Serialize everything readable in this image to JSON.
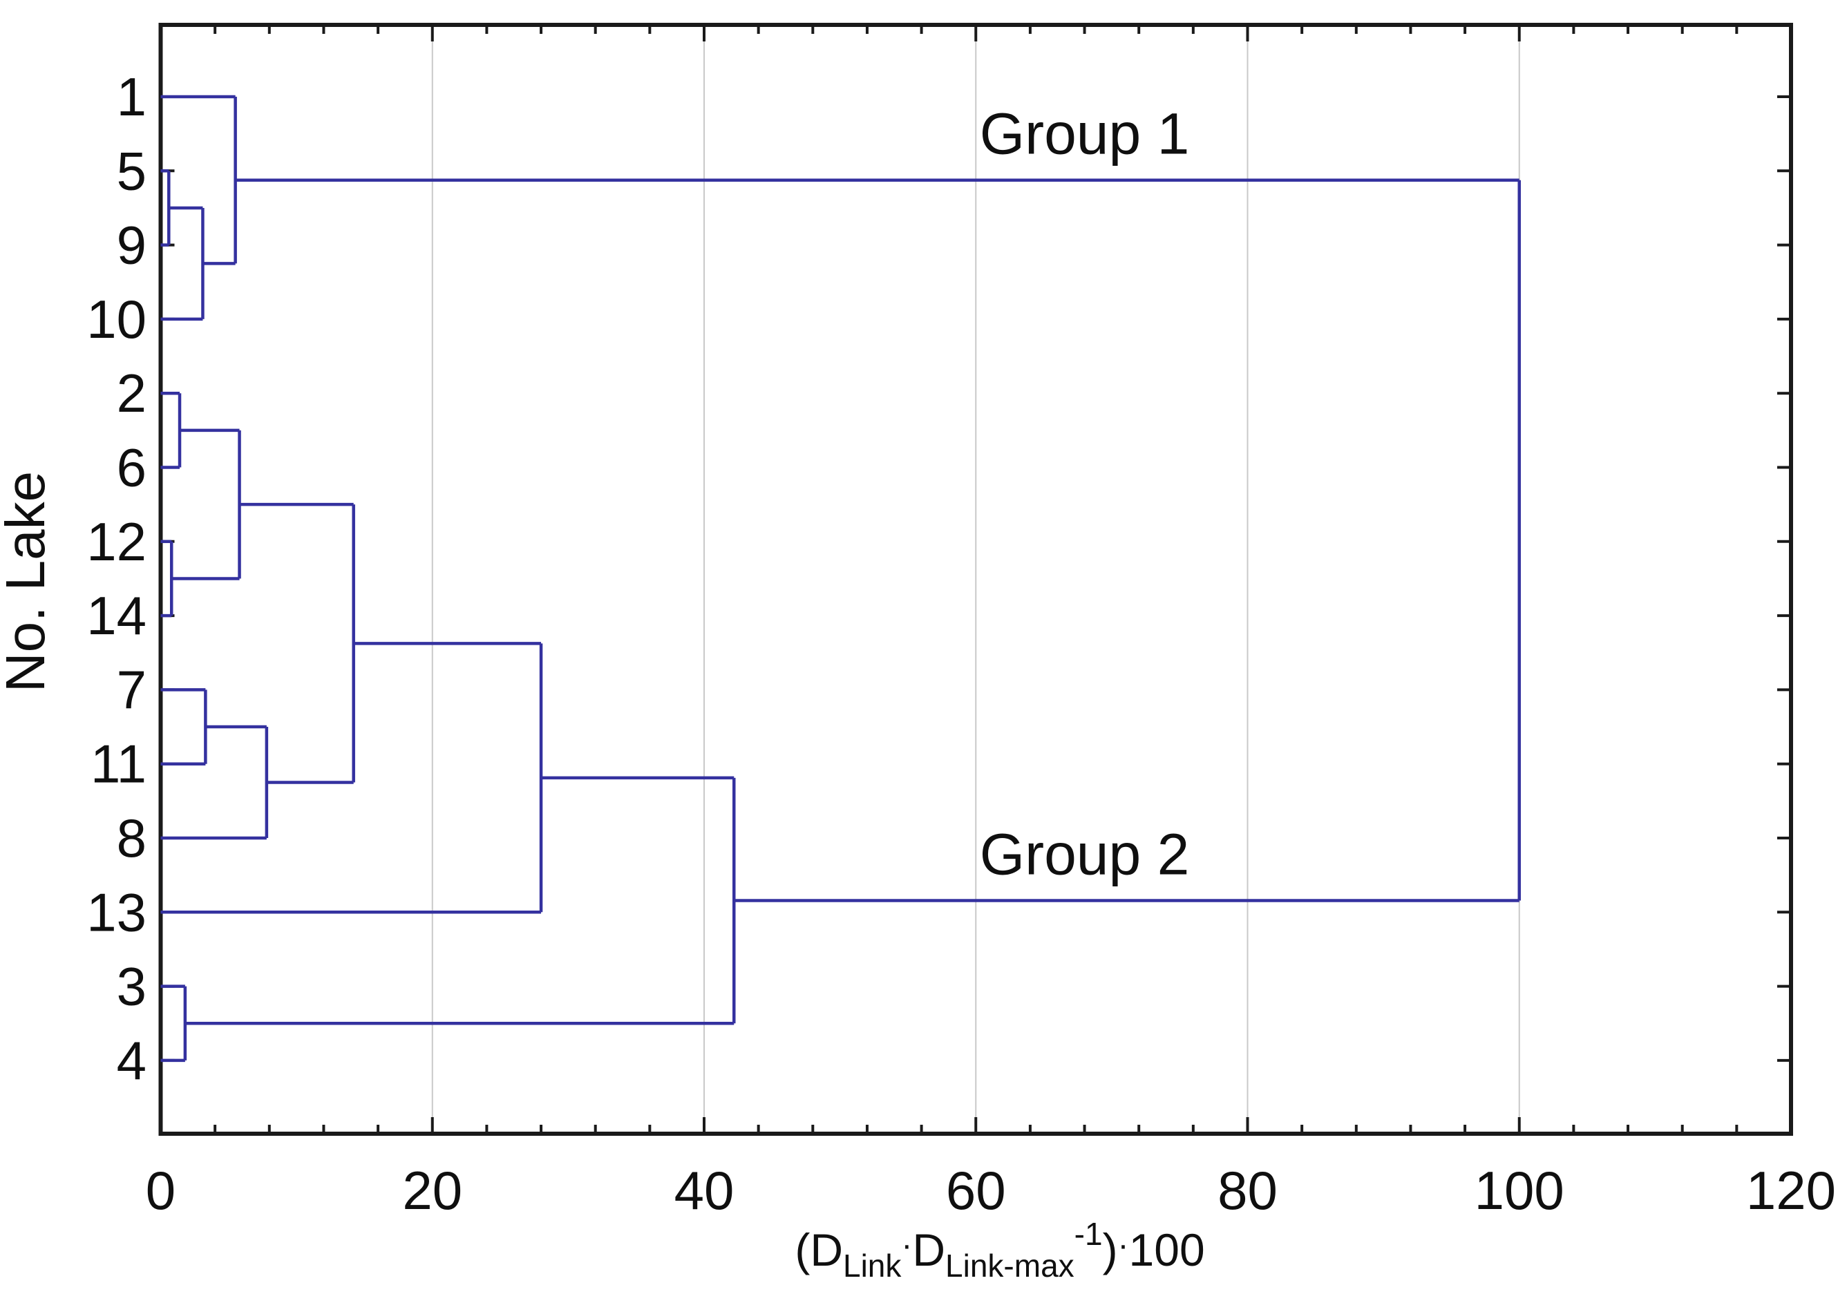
{
  "figure": {
    "kind": "cluster-dendrogram-figure",
    "background": "#ffffff"
  },
  "chart_data": {
    "type": "dendrogram",
    "orientation": "horizontal",
    "ylabel": "No. Lake",
    "xlabel_plain": "(D_Link . D_Link-max ^-1) . 100",
    "xlabel_parts": [
      {
        "t": "(D",
        "k": "main"
      },
      {
        "t": "Link",
        "k": "sub"
      },
      {
        "t": "·",
        "k": "dot"
      },
      {
        "t": "D",
        "k": "main"
      },
      {
        "t": "Link-max",
        "k": "sub"
      },
      {
        "t": "-1",
        "k": "sup"
      },
      {
        "t": ")",
        "k": "main"
      },
      {
        "t": "·",
        "k": "dot"
      },
      {
        "t": "100",
        "k": "main"
      }
    ],
    "xlim": [
      0,
      120
    ],
    "x_major_tick_values": [
      0,
      20,
      40,
      60,
      80,
      100,
      120
    ],
    "x_major_tick_labels": [
      "0",
      "20",
      "40",
      "60",
      "80",
      "100",
      "120"
    ],
    "x_minor_tick_step": 4,
    "grid_values": [
      20,
      40,
      60,
      80,
      100
    ],
    "grid_on": true,
    "leaves": [
      "1",
      "5",
      "9",
      "10",
      "2",
      "6",
      "12",
      "14",
      "7",
      "11",
      "8",
      "13",
      "3",
      "4"
    ],
    "merges": [
      {
        "id": "M1",
        "a": "L1",
        "b": "L2",
        "dist": 0.6
      },
      {
        "id": "M2",
        "a": "M1",
        "b": "L3",
        "dist": 3.1
      },
      {
        "id": "M3",
        "a": "L0",
        "b": "M2",
        "dist": 5.5
      },
      {
        "id": "M4",
        "a": "L4",
        "b": "L5",
        "dist": 1.4
      },
      {
        "id": "M5",
        "a": "L6",
        "b": "L7",
        "dist": 0.8
      },
      {
        "id": "M6",
        "a": "M4",
        "b": "M5",
        "dist": 5.8
      },
      {
        "id": "M7",
        "a": "L8",
        "b": "L9",
        "dist": 3.3
      },
      {
        "id": "M8",
        "a": "M7",
        "b": "L10",
        "dist": 7.8
      },
      {
        "id": "M9",
        "a": "M6",
        "b": "M8",
        "dist": 14.2
      },
      {
        "id": "M10",
        "a": "M9",
        "b": "L11",
        "dist": 28
      },
      {
        "id": "M11",
        "a": "L12",
        "b": "L13",
        "dist": 1.8
      },
      {
        "id": "M12",
        "a": "M10",
        "b": "M11",
        "dist": 42.2
      },
      {
        "id": "M13",
        "a": "M3",
        "b": "M12",
        "dist": 100
      }
    ],
    "annotations": [
      {
        "text": "Group 1",
        "x_units": 68,
        "anchor_merge": "M3"
      },
      {
        "text": "Group 2",
        "x_units": 68,
        "anchor_merge": "M12"
      }
    ],
    "colors": {
      "link": "#34319f",
      "grid": "#c9c9c9",
      "axis": "#1a1a1a",
      "text": "#0f0f0f"
    }
  }
}
